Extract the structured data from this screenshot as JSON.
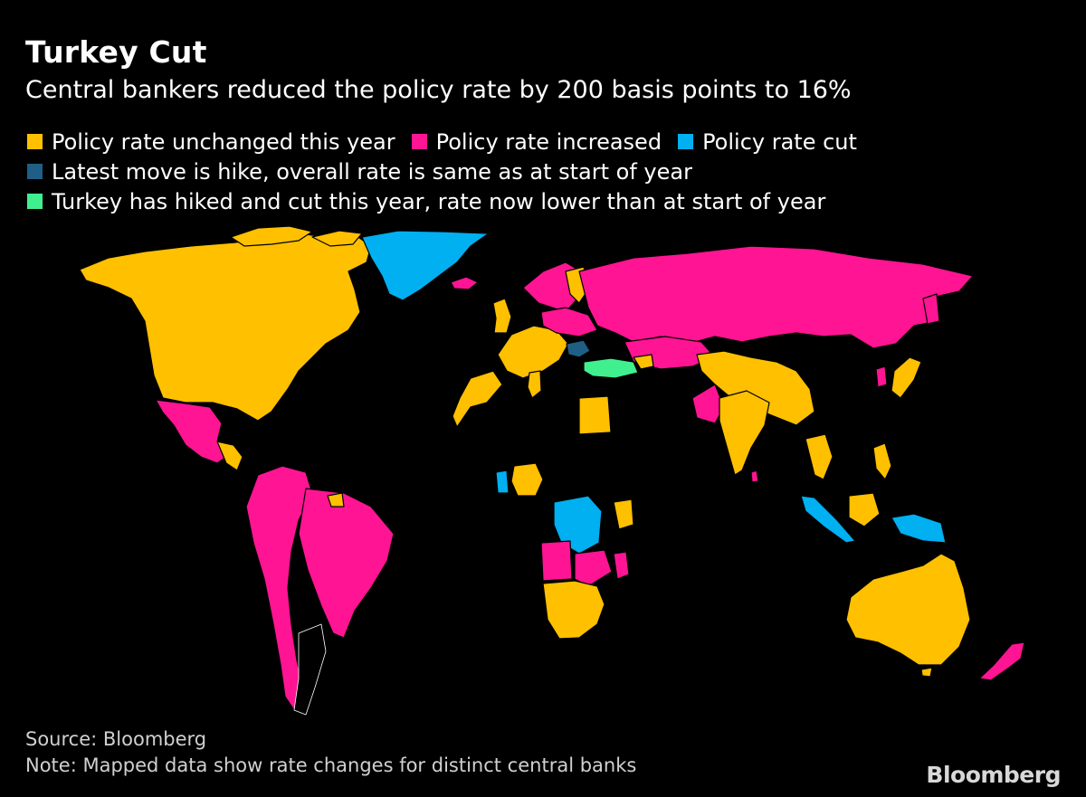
{
  "header": {
    "title": "Turkey Cut",
    "subtitle": "Central bankers reduced the policy rate by 200 basis points to 16%"
  },
  "legend": [
    {
      "label": "Policy rate unchanged this year",
      "color": "#FFC000"
    },
    {
      "label": "Policy rate increased",
      "color": "#FF1493"
    },
    {
      "label": "Policy rate cut",
      "color": "#00B0F0"
    },
    {
      "label": "Latest move is hike, overall rate is same as at start of year",
      "color": "#1F5F85"
    },
    {
      "label": "Turkey has hiked and cut this year, rate now lower than at start of year",
      "color": "#40F08F"
    }
  ],
  "colors": {
    "unchanged": "#FFC000",
    "increased": "#FF1493",
    "cut": "#00B0F0",
    "hike_same": "#1F5F85",
    "turkey": "#40F08F",
    "no_data": "#000000",
    "border": "#ffffff"
  },
  "footer": {
    "source": "Source: Bloomberg",
    "note": "Note: Mapped data show rate changes for distinct central banks",
    "brand": "Bloomberg"
  }
}
